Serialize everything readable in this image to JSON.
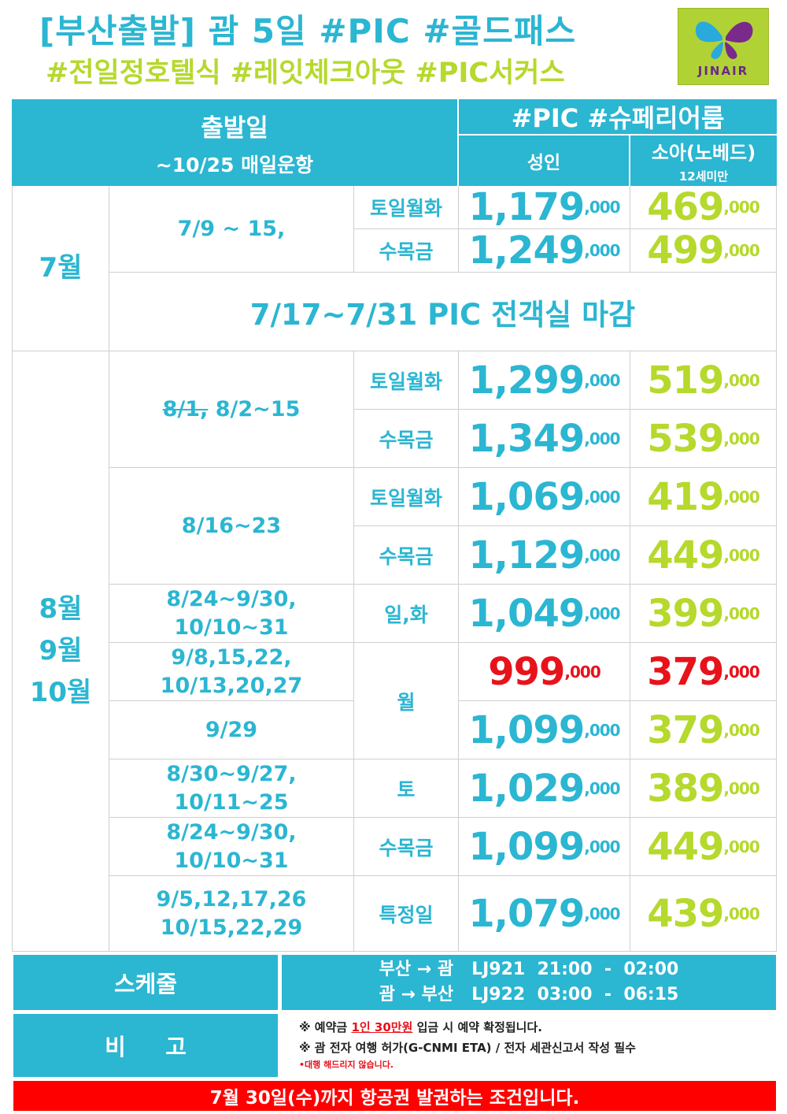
{
  "header": {
    "title_line1": "[부산출발] 괌 5일 #PIC #골드패스",
    "title_line2": "#전일정호텔식 #레잇체크아웃 #PIC서커스",
    "logo_text": "JINAIR"
  },
  "table_head": {
    "departure_label": "출발일",
    "departure_sub": "~10/25 매일운항",
    "room_label": "#PIC #슈페리어룸",
    "adult_label": "성인",
    "child_label": "소아(노베드)",
    "child_sub": "12세미만"
  },
  "july": {
    "month": "7월",
    "range": "7/9 ~ 15,",
    "rows": [
      {
        "days": "토일월화",
        "adult": "1,179",
        "child": "469"
      },
      {
        "days": "수목금",
        "adult": "1,249",
        "child": "499"
      }
    ],
    "closed_notice": "7/17~7/31 PIC 전객실 마감"
  },
  "autumn": {
    "month_lines": [
      "8월",
      "9월",
      "10월"
    ],
    "group1": {
      "struck": "8/1,",
      "range": "8/2~15",
      "rows": [
        {
          "days": "토일월화",
          "adult": "1,299",
          "child": "519"
        },
        {
          "days": "수목금",
          "adult": "1,349",
          "child": "539"
        }
      ]
    },
    "group2": {
      "range": "8/16~23",
      "rows": [
        {
          "days": "토일월화",
          "adult": "1,069",
          "child": "419"
        },
        {
          "days": "수목금",
          "adult": "1,129",
          "child": "449"
        }
      ]
    },
    "rows": [
      {
        "dates": "8/24~9/30, 10/10~31",
        "days": "일,화",
        "adult": "1,049",
        "child": "399"
      },
      {
        "dates": "9/8,15,22, 10/13,20,27",
        "adult": "999",
        "child": "379"
      },
      {
        "dates": "9/29",
        "adult": "1,099",
        "child": "379"
      },
      {
        "dates": "8/30~9/27, 10/11~25",
        "days": "토",
        "adult": "1,029",
        "child": "389"
      },
      {
        "dates": "8/24~9/30, 10/10~31",
        "days": "수목금",
        "adult": "1,099",
        "child": "449"
      },
      {
        "dates_line1": "9/5,12,17,26",
        "dates_line2": "10/15,22,29",
        "days": "특정일",
        "adult": "1,079",
        "child": "439"
      }
    ],
    "monday_label": "월"
  },
  "price_suffix": ",000",
  "footer": {
    "schedule_label": "스케줄",
    "schedule_line1": "부산 → 괌   LJ921  21:00  -  02:00",
    "schedule_line2": "괌 → 부산   LJ922  03:00  -  06:15",
    "remarks_label": "비     고",
    "note1_pre": "※ 예약금 ",
    "note1_hl": "1인 30만원",
    "note1_post": " 입금 시 예약 확정됩니다.",
    "note2": "※ 괌 전자 여행 허가(G-CNMI ETA) / 전자 세관신고서 작성 필수",
    "note3": "•대행 해드리지 않습니다.",
    "bottom_notice": "7월 30일(수)까지 항공권 발권하는 조건입니다."
  },
  "colors": {
    "accent": "#2bb6d2",
    "lime": "#b5d92c",
    "red": "#e8121b",
    "notice_bar": "#ff0000",
    "logo_bg": "#b1d235"
  }
}
